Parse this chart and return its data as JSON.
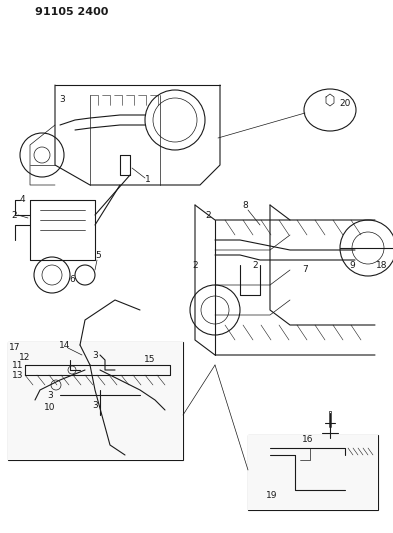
{
  "title": "91105 2400",
  "bg_color": "#ffffff",
  "line_color": "#1a1a1a",
  "title_fontsize": 9,
  "label_fontsize": 6.5,
  "fig_width": 3.93,
  "fig_height": 5.33,
  "dpi": 100
}
